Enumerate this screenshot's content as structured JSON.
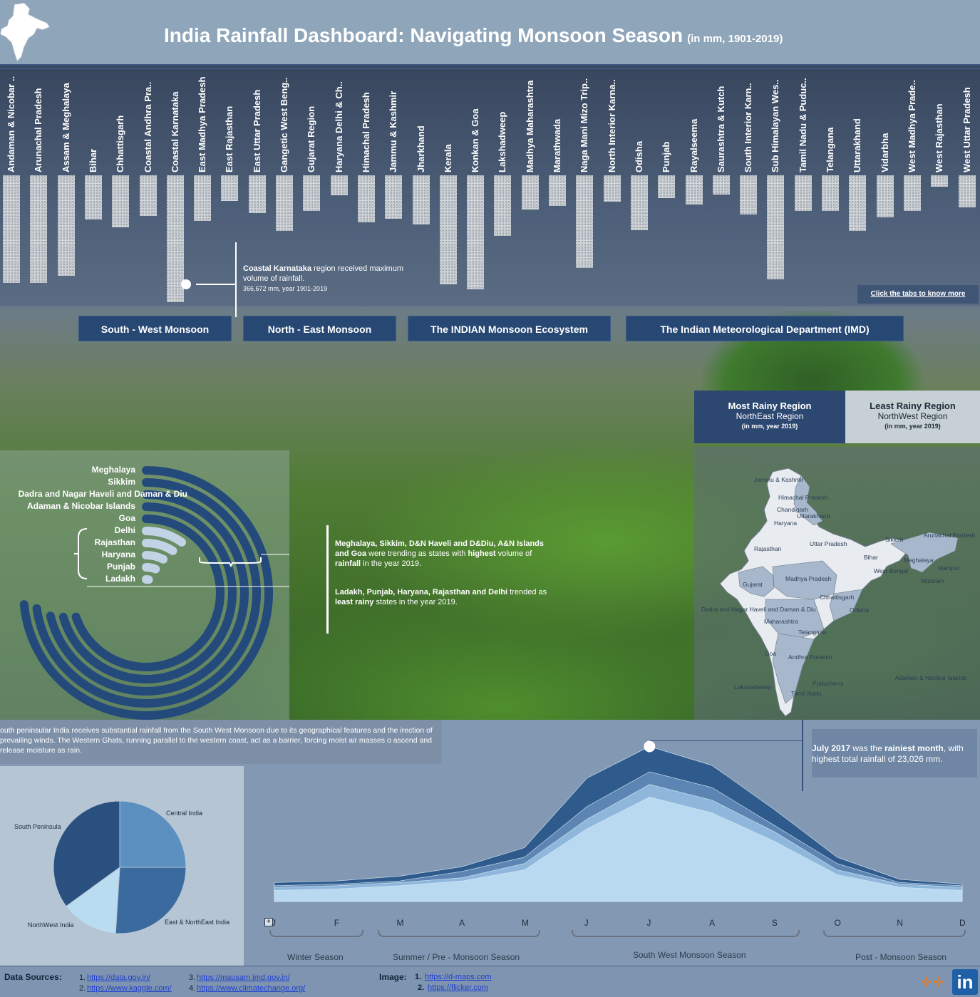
{
  "header": {
    "title": "India Rainfall Dashboard: Navigating Monsoon Season",
    "subtitle": "(in mm, 1901-2019)"
  },
  "states": [
    {
      "label": "Andaman & Nicobar ..",
      "value": 0.85
    },
    {
      "label": "Arunachal Pradesh",
      "value": 0.85
    },
    {
      "label": "Assam & Meghalaya",
      "value": 0.79
    },
    {
      "label": "Bihar",
      "value": 0.35
    },
    {
      "label": "Chhattisgarh",
      "value": 0.41
    },
    {
      "label": "Coastal Andhra Pra..",
      "value": 0.32
    },
    {
      "label": "Coastal Karnataka",
      "value": 1.0
    },
    {
      "label": "East Madhya Pradesh",
      "value": 0.36
    },
    {
      "label": "East Rajasthan",
      "value": 0.2
    },
    {
      "label": "East Uttar Pradesh",
      "value": 0.3
    },
    {
      "label": "Gangetic West Beng..",
      "value": 0.44
    },
    {
      "label": "Gujarat Region",
      "value": 0.28
    },
    {
      "label": "Haryana Delhi & Ch..",
      "value": 0.16
    },
    {
      "label": "Himachal Pradesh",
      "value": 0.37
    },
    {
      "label": "Jammu & Kashmir",
      "value": 0.34
    },
    {
      "label": "Jharkhand",
      "value": 0.39
    },
    {
      "label": "Kerala",
      "value": 0.86
    },
    {
      "label": "Konkan & Goa",
      "value": 0.9
    },
    {
      "label": "Lakshadweep",
      "value": 0.48
    },
    {
      "label": "Madhya Maharashtra",
      "value": 0.27
    },
    {
      "label": "Marathwada",
      "value": 0.24
    },
    {
      "label": "Naga Mani Mizo Trip..",
      "value": 0.73
    },
    {
      "label": "North Interior Karna..",
      "value": 0.21
    },
    {
      "label": "Odisha",
      "value": 0.43
    },
    {
      "label": "Punjab",
      "value": 0.18
    },
    {
      "label": "Rayalseema",
      "value": 0.23
    },
    {
      "label": "Saurashtra & Kutch",
      "value": 0.15
    },
    {
      "label": "South Interior Karn..",
      "value": 0.31
    },
    {
      "label": "Sub Himalayan Wes..",
      "value": 0.82
    },
    {
      "label": "Tamil Nadu & Puduc..",
      "value": 0.28
    },
    {
      "label": "Telangana",
      "value": 0.28
    },
    {
      "label": "Uttarakhand",
      "value": 0.44
    },
    {
      "label": "Vidarbha",
      "value": 0.33
    },
    {
      "label": "West Madhya Prade..",
      "value": 0.28
    },
    {
      "label": "West Rajasthan",
      "value": 0.09
    },
    {
      "label": "West Uttar Pradesh",
      "value": 0.25
    }
  ],
  "callout": {
    "region": "Coastal Karnataka",
    "text1": " region received maximum volume of rainfall.",
    "sub": "366,672 mm, year 1901-2019"
  },
  "more_link": "Click the tabs to know more",
  "tabs": [
    "South - West Monsoon",
    "North - East Monsoon",
    "The INDIAN Monsoon Ecosystem",
    "The Indian Meteorological Department (IMD)"
  ],
  "most_rainy": {
    "heading": "Most Rainy Region",
    "value": "NorthEast Region",
    "note": "(in mm, year 2019)"
  },
  "least_rainy": {
    "heading": "Least Rainy Region",
    "value": "NorthWest Region",
    "note": "(in mm, year 2019)"
  },
  "map_labels": [
    {
      "text": "Jammu & Kashmir"
    },
    {
      "text": "Himachal Pradesh"
    },
    {
      "text": "Chandigarh"
    },
    {
      "text": "Uttarakhand"
    },
    {
      "text": "Haryana"
    },
    {
      "text": "Rajasthan"
    },
    {
      "text": "Uttar Pradesh"
    },
    {
      "text": "Sikkim"
    },
    {
      "text": "Arunachal Pradesh"
    },
    {
      "text": "Bihar"
    },
    {
      "text": "Meghalaya"
    },
    {
      "text": "Manipur"
    },
    {
      "text": "West Bengal"
    },
    {
      "text": "Mizoram"
    },
    {
      "text": "Gujarat"
    },
    {
      "text": "Madhya Pradesh"
    },
    {
      "text": "Chhattisgarh"
    },
    {
      "text": "Dadra and Nagar Haveli and Daman & Diu"
    },
    {
      "text": "Odisha"
    },
    {
      "text": "Maharashtra"
    },
    {
      "text": "Telangana"
    },
    {
      "text": "Goa"
    },
    {
      "text": "Andhra Pradesh"
    },
    {
      "text": "Adaman & Nicobar Islands"
    },
    {
      "text": "Puducherry"
    },
    {
      "text": "Lakshadweep"
    },
    {
      "text": "Tamil Nadu"
    }
  ],
  "radial": {
    "labels": [
      "Meghalaya",
      "Sikkim",
      "Dadra and Nagar Haveli and Daman & Diu",
      "Adaman & Nicobar Islands",
      "Goa",
      "Delhi",
      "Rajasthan",
      "Haryana",
      "Punjab",
      "Ladakh"
    ],
    "values": [
      0.98,
      0.97,
      0.95,
      0.94,
      0.93,
      0.13,
      0.12,
      0.1,
      0.08,
      0.04
    ],
    "note1_bold": "Meghalaya, Sikkim, D&N Haveli and D&Diu, A&N Islands and Goa",
    "note1_a": " were trending as states with ",
    "note1_b": "highest",
    "note1_c": " volume of ",
    "note1_d": "rainfall",
    "note1_e": " in the year 2019.",
    "note2_bold": "Ladakh, Punjab, Haryana, Rajasthan and Delhi",
    "note2_a": " trended as ",
    "note2_b": "least rainy",
    "note2_c": " states in the year 2019."
  },
  "description": "outh peninsular India receives substantial rainfall from the South West Monsoon due to its geographical features and the irection of prevailing winds. The Western Ghats, running parallel to the western coast, act as a barrier, forcing moist air masses o ascend and release moisture as rain.",
  "pie": {
    "labels": [
      "Central India",
      "East & NorthEast India",
      "NorthWest India",
      "South Peninsula"
    ],
    "values": [
      0.25,
      0.26,
      0.14,
      0.35
    ],
    "colors": [
      "#5b8fbf",
      "#3b6a9e",
      "#b9dcf0",
      "#2a507f"
    ]
  },
  "july": {
    "bold1": "July 2017",
    "a": " was the ",
    "bold2": "rainiest month",
    "b": ", with highest total rainfall of 23,026 mm."
  },
  "months": [
    "J",
    "F",
    "M",
    "A",
    "M",
    "J",
    "J",
    "A",
    "S",
    "O",
    "N",
    "D"
  ],
  "seasons": [
    "Winter Season",
    "Summer / Pre - Monsoon Season",
    "South West Monsoon Season",
    "Post - Monsoon Season"
  ],
  "chart_data": {
    "type": "area",
    "x": [
      "J",
      "F",
      "M",
      "A",
      "M",
      "J",
      "J",
      "A",
      "S",
      "O",
      "N",
      "D"
    ],
    "series": [
      {
        "values": [
          0.12,
          0.13,
          0.16,
          0.22,
          0.34,
          0.78,
          0.98,
          0.86,
          0.58,
          0.28,
          0.14,
          0.11
        ]
      },
      {
        "values": [
          0.1,
          0.11,
          0.13,
          0.19,
          0.28,
          0.6,
          0.82,
          0.72,
          0.48,
          0.24,
          0.12,
          0.1
        ]
      },
      {
        "values": [
          0.09,
          0.1,
          0.12,
          0.15,
          0.24,
          0.52,
          0.74,
          0.64,
          0.44,
          0.2,
          0.11,
          0.09
        ]
      },
      {
        "values": [
          0.07,
          0.08,
          0.1,
          0.13,
          0.2,
          0.46,
          0.66,
          0.56,
          0.38,
          0.17,
          0.09,
          0.07
        ]
      }
    ],
    "peak_label": "July 2017"
  },
  "footer": {
    "sources_label": "Data Sources:",
    "src1": "https://data.gov.in/",
    "src2": "https://www.kaggle.com/",
    "src3": "https://mausam.imd.gov.in/",
    "src4": "https://www.climatechange.org/",
    "image_label": "Image:",
    "img1": "https://d-maps.com",
    "img2": "https://flicker.com",
    "n1": "1.",
    "n2": "2.",
    "n3": "3.",
    "n4": "4."
  }
}
